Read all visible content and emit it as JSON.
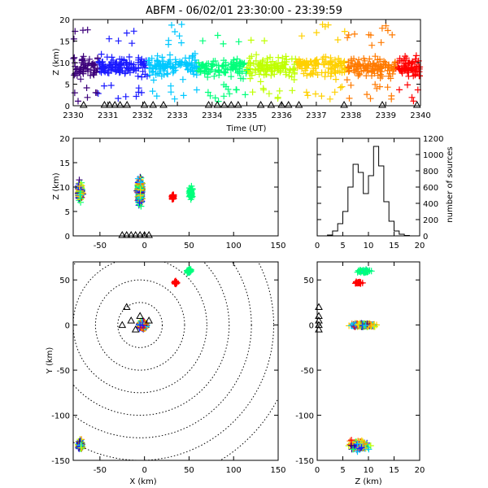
{
  "figure": {
    "title": "ABFM - 06/02/01 23:30:00 - 23:39:59"
  },
  "chart_data": [
    {
      "id": "time_height",
      "type": "scatter",
      "xlabel": "Time (UT)",
      "ylabel": "Z (km)",
      "xlim": [
        2330,
        2340
      ],
      "ylim": [
        0,
        20
      ],
      "xticks": [
        "2330",
        "2331",
        "2332",
        "2333",
        "2334",
        "2335",
        "2336",
        "2337",
        "2338",
        "2339",
        "2340"
      ],
      "yticks": [
        "0",
        "5",
        "10",
        "15",
        "20"
      ],
      "color_by": "time",
      "colormap": [
        "#3d007a",
        "#1a1aff",
        "#00c8ff",
        "#00ff7a",
        "#bfff00",
        "#ffd000",
        "#ff7a00",
        "#ff0000"
      ],
      "sensor_markers_x": [
        2330.3,
        2330.9,
        2331.05,
        2331.2,
        2331.35,
        2331.55,
        2332.05,
        2332.3,
        2332.6,
        2333.9,
        2334.15,
        2334.35,
        2334.55,
        2334.75,
        2335.4,
        2335.7,
        2336.0,
        2336.2,
        2336.5,
        2337.8,
        2338.9,
        2339.9
      ]
    },
    {
      "id": "x_height",
      "type": "scatter",
      "xlabel": "",
      "ylabel": "Z (km)",
      "xlim": [
        -80,
        150
      ],
      "ylim": [
        0,
        20
      ],
      "xticks": [
        "-50",
        "0",
        "50",
        "100",
        "150"
      ],
      "yticks": [
        "0",
        "5",
        "10",
        "15",
        "20"
      ]
    },
    {
      "id": "altitude_histogram",
      "type": "line",
      "xlabel": "",
      "ylabel": "number of sources",
      "xlim": [
        0,
        20
      ],
      "ylim": [
        0,
        1200
      ],
      "xticks": [
        "0",
        "5",
        "10",
        "15",
        "20"
      ],
      "yticks": [
        "0",
        "200",
        "400",
        "600",
        "800",
        "1000",
        "1200"
      ],
      "x": [
        0,
        1,
        2,
        3,
        4,
        5,
        6,
        7,
        8,
        9,
        10,
        11,
        12,
        13,
        14,
        15,
        16,
        17,
        18,
        19,
        20
      ],
      "values": [
        0,
        0,
        10,
        60,
        150,
        300,
        600,
        880,
        780,
        520,
        740,
        1100,
        860,
        420,
        180,
        60,
        20,
        5,
        0,
        0,
        0
      ]
    },
    {
      "id": "plan_view",
      "type": "scatter",
      "xlabel": "X (km)",
      "ylabel": "Y (km)",
      "xlim": [
        -80,
        150
      ],
      "ylim": [
        -150,
        70
      ],
      "xticks": [
        "-50",
        "0",
        "50",
        "100",
        "150"
      ],
      "yticks": [
        "-150",
        "-100",
        "-50",
        "0",
        "50"
      ],
      "range_rings_km": [
        25,
        50,
        75,
        100,
        125,
        150,
        175
      ]
    },
    {
      "id": "height_y",
      "type": "scatter",
      "xlabel": "Z (km)",
      "ylabel": "",
      "xlim": [
        0,
        20
      ],
      "ylim": [
        -150,
        70
      ],
      "xticks": [
        "0",
        "5",
        "10",
        "15",
        "20"
      ],
      "yticks": [
        "-150",
        "-100",
        "-50",
        "0",
        "50"
      ]
    }
  ]
}
